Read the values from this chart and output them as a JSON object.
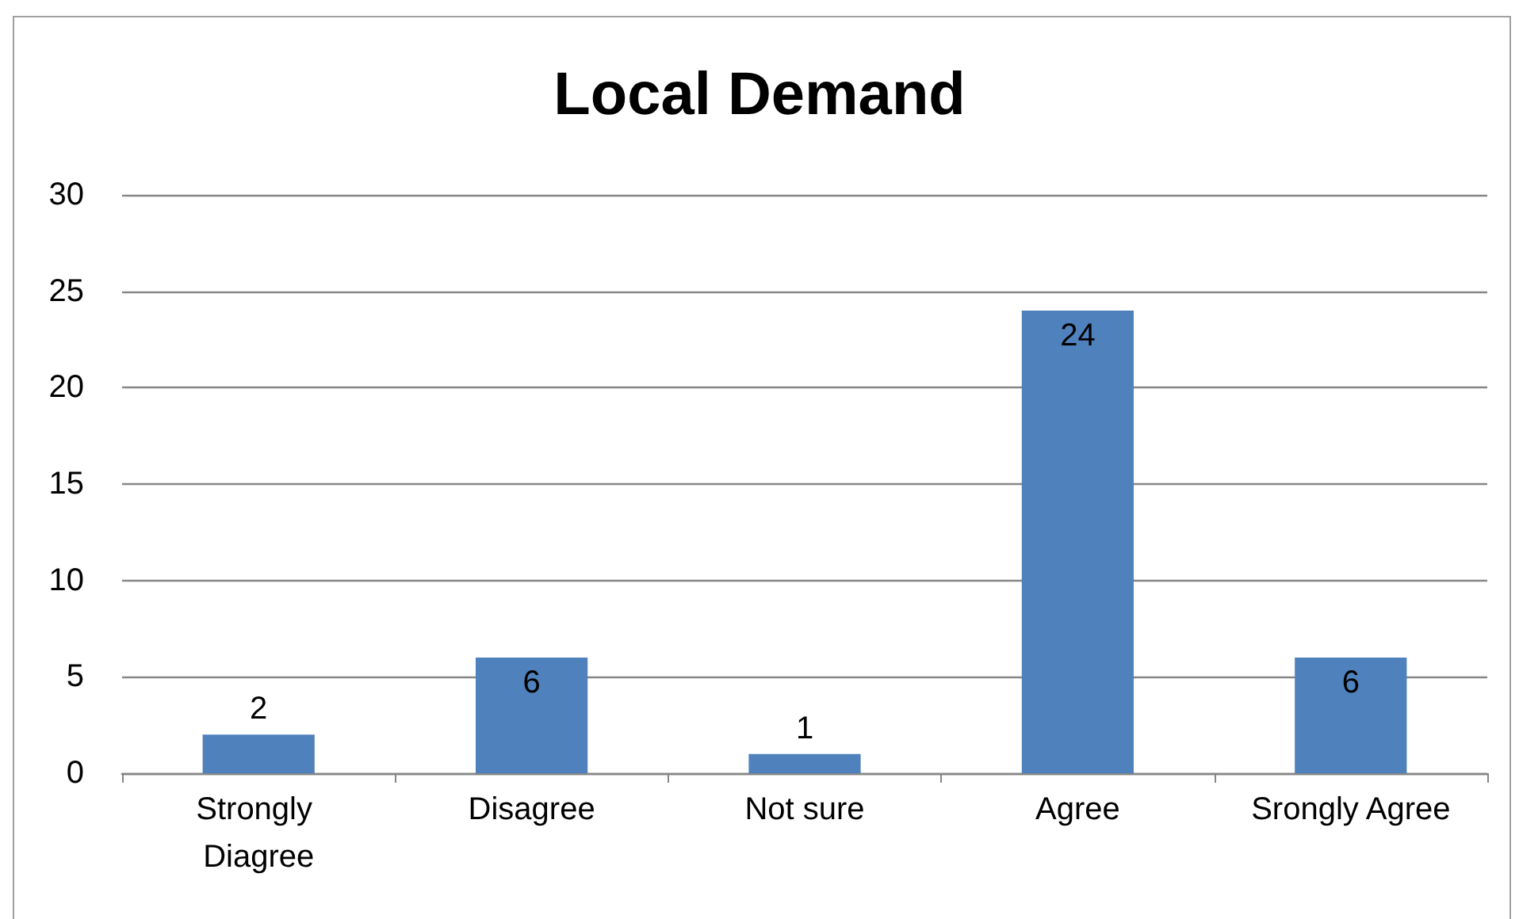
{
  "chart_data": {
    "type": "bar",
    "title": "Local Demand",
    "categories": [
      "Strongly Diagree",
      "Disagree",
      "Not sure",
      "Agree",
      "Srongly Agree"
    ],
    "values": [
      2,
      6,
      1,
      24,
      6
    ],
    "color": "#4f81bd",
    "ylim": [
      0,
      30
    ],
    "yticks": [
      0,
      5,
      10,
      15,
      20,
      25,
      30
    ],
    "grid": "y",
    "data_labels": true
  }
}
